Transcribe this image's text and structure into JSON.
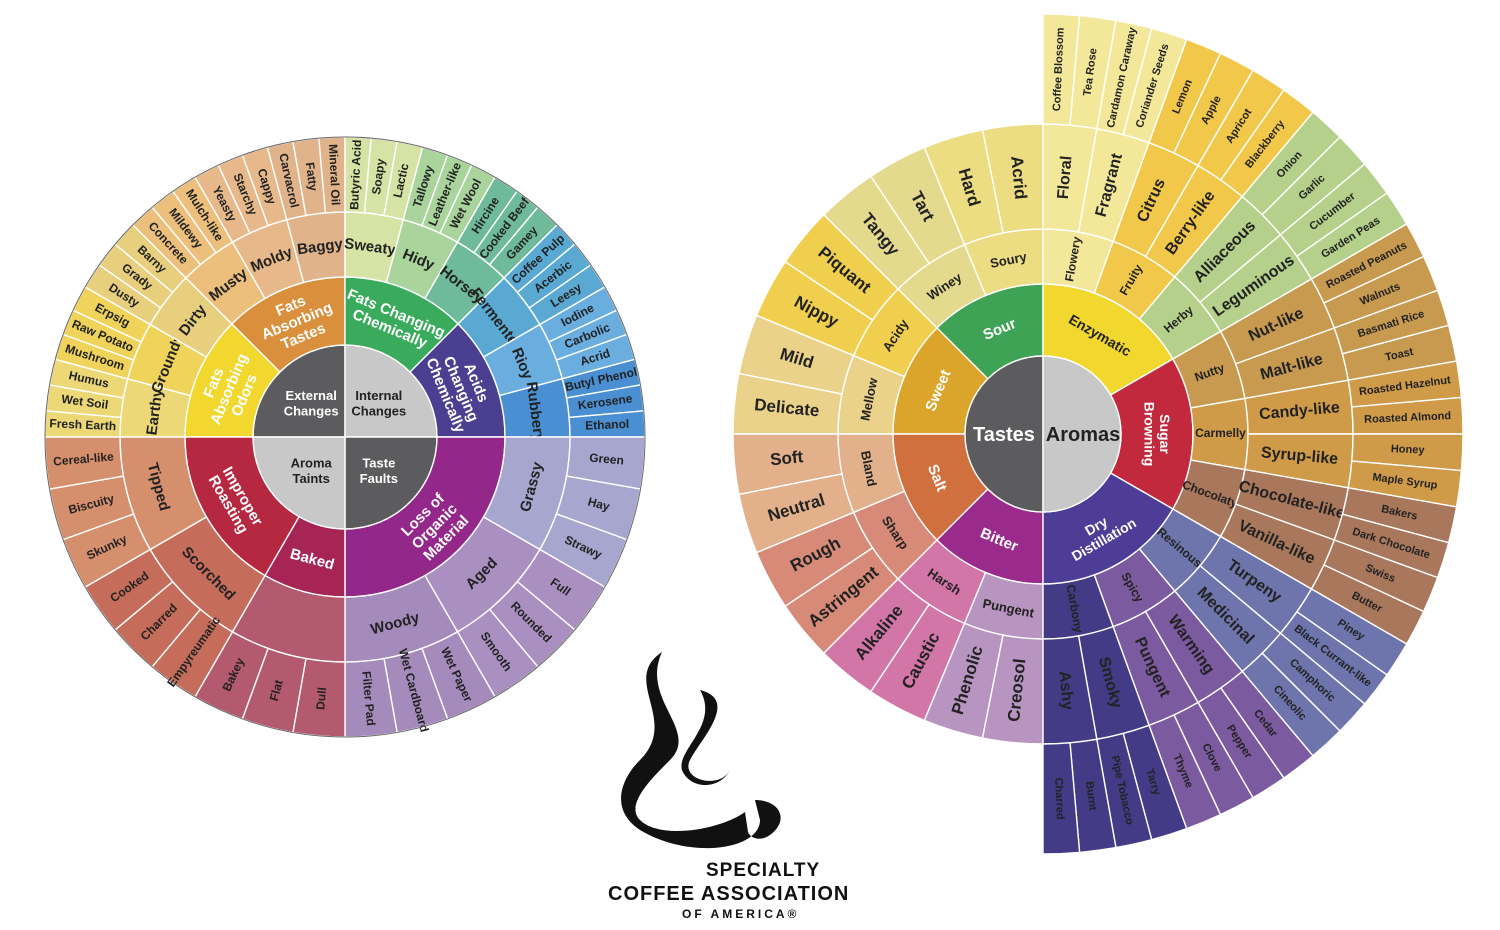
{
  "left_wheel": {
    "quadrants": [
      {
        "label": "External Changes",
        "color": "#5c5c5e",
        "text": "#ffffff",
        "groups": [
          {
            "label": "Fats Absorbing Odors",
            "color": "#f2d72e",
            "subs": [
              {
                "label": "Earthy",
                "color": "#ecd877",
                "items": [
                  "Fresh Earth",
                  "Wet Soil",
                  "Humus"
                ]
              },
              {
                "label": "Groundy",
                "color": "#efd35a",
                "items": [
                  "Mushroom",
                  "Raw Potato",
                  "Erpsig"
                ]
              },
              {
                "label": "Dirty",
                "color": "#e8cf7d",
                "items": [
                  "Dusty",
                  "Grady",
                  "Barny"
                ]
              }
            ]
          },
          {
            "label": "Fats Absorbing Tastes",
            "color": "#d98f3b",
            "subs": [
              {
                "label": "Musty",
                "color": "#ecc07c",
                "items": [
                  "Concrete",
                  "Mildewy",
                  "Mulch-like"
                ]
              },
              {
                "label": "Moldy",
                "color": "#e7b98a",
                "items": [
                  "Yeasty",
                  "Starchy",
                  "Cappy"
                ]
              },
              {
                "label": "Baggy",
                "color": "#e0b38a",
                "items": [
                  "Carvacrol",
                  "Fatty",
                  "Mineral Oil"
                ]
              }
            ]
          }
        ]
      },
      {
        "label": "Internal Changes",
        "color": "#c8c8c8",
        "text": "#222222",
        "groups": [
          {
            "label": "Fats Changing Chemically",
            "color": "#3aab5c",
            "subs": [
              {
                "label": "Sweaty",
                "color": "#d6e3a5",
                "items": [
                  "Butyric Acid",
                  "Soapy",
                  "Lactic"
                ]
              },
              {
                "label": "Hidy",
                "color": "#a9d49b",
                "items": [
                  "Tallowy",
                  "Leather-like",
                  "Wet Wool"
                ]
              },
              {
                "label": "Horsey",
                "color": "#6fba9a",
                "items": [
                  "Hircine",
                  "Cooked Beef",
                  "Gamey"
                ]
              }
            ]
          },
          {
            "label": "Acids Changing Chemically",
            "color": "#4b3f92",
            "subs": [
              {
                "label": "Fermented",
                "color": "#5aa9d3",
                "items": [
                  "Coffee Pulp",
                  "Acerbic",
                  "Leesy"
                ]
              },
              {
                "label": "Rioy",
                "color": "#6aaee0",
                "items": [
                  "Iodine",
                  "Carbolic",
                  "Acrid"
                ]
              },
              {
                "label": "Rubbery",
                "color": "#4a8fd2",
                "items": [
                  "Butyl Phenol",
                  "Kerosene",
                  "Ethanol"
                ]
              }
            ]
          }
        ]
      },
      {
        "label": "Taste Faults",
        "color": "#5c5c5e",
        "text": "#ffffff",
        "groups": [
          {
            "label": "Loss of Organic Material",
            "color": "#93288a",
            "subs": [
              {
                "label": "Grassy",
                "color": "#a7a6cf",
                "items": [
                  "Green",
                  "Hay",
                  "Strawy"
                ]
              },
              {
                "label": "Aged",
                "color": "#a990c0",
                "items": [
                  "Full",
                  "Rounded",
                  "Smooth"
                ]
              },
              {
                "label": "Woody",
                "color": "#a48bbb",
                "items": [
                  "Wet Paper",
                  "Wet Cardboard",
                  "Filter Pad"
                ]
              }
            ]
          }
        ]
      },
      {
        "label": "Aroma Taints",
        "color": "#c8c8c8",
        "text": "#222222",
        "groups": [
          {
            "label": "Baked",
            "color": "#a62555",
            "subs": [
              {
                "label": "",
                "color": "#b35a6e",
                "items": [
                  "Dull",
                  "Flat",
                  "Bakey"
                ]
              }
            ]
          },
          {
            "label": "Improper Roasting",
            "color": "#b5283f",
            "subs": [
              {
                "label": "Scorched",
                "color": "#c56d5a",
                "items": [
                  "Empyreumatic",
                  "Charred",
                  "Cooked"
                ]
              },
              {
                "label": "Tipped",
                "color": "#d68f6c",
                "items": [
                  "Skunky",
                  "Biscuity",
                  "Cereal-like"
                ]
              }
            ]
          }
        ]
      }
    ]
  },
  "right_wheel": {
    "tastes_label": "Tastes",
    "aromas_label": "Aromas",
    "tastes": [
      {
        "label": "Sour",
        "color": "#3ea354",
        "subs": [
          {
            "label": "Soury",
            "color": "#ecdc82",
            "items": [
              "Acrid",
              "Hard"
            ]
          },
          {
            "label": "Winey",
            "color": "#e3da8e",
            "items": [
              "Tart",
              "Tangy"
            ]
          }
        ]
      },
      {
        "label": "Sweet",
        "color": "#dba52b",
        "subs": [
          {
            "label": "Acidy",
            "color": "#f0cf4f",
            "items": [
              "Piquant",
              "Nippy"
            ]
          },
          {
            "label": "Mellow",
            "color": "#ead28a",
            "items": [
              "Mild",
              "Delicate"
            ]
          }
        ]
      },
      {
        "label": "Salt",
        "color": "#d0703f",
        "subs": [
          {
            "label": "Bland",
            "color": "#e2b08a",
            "items": [
              "Soft",
              "Neutral"
            ]
          },
          {
            "label": "Sharp",
            "color": "#d78a78",
            "items": [
              "Rough",
              "Astringent"
            ]
          }
        ]
      },
      {
        "label": "Bitter",
        "color": "#9a2a8b",
        "subs": [
          {
            "label": "Harsh",
            "color": "#d276a7",
            "items": [
              "Alkaline",
              "Caustic"
            ]
          },
          {
            "label": "Pungent",
            "color": "#b895c0",
            "items": [
              "Phenolic",
              "Creosol"
            ]
          }
        ]
      }
    ],
    "aromas": [
      {
        "label": "Enzymatic",
        "color": "#f2d72e",
        "subs": [
          {
            "label": "Flowery",
            "color": "#f3e89a",
            "items": [
              {
                "label": "Floral",
                "children": [
                  "Coffee Blossom",
                  "Tea Rose"
                ]
              },
              {
                "label": "Fragrant",
                "children": [
                  "Cardamon Caraway",
                  "Coriander Seeds"
                ]
              }
            ]
          },
          {
            "label": "Fruity",
            "color": "#f2c84a",
            "items": [
              {
                "label": "Citrus",
                "children": [
                  "Lemon",
                  "Apple"
                ]
              },
              {
                "label": "Berry-like",
                "children": [
                  "Apricot",
                  "Blackberry"
                ]
              }
            ]
          },
          {
            "label": "Herby",
            "color": "#b5d08a",
            "items": [
              {
                "label": "Alliaceous",
                "children": [
                  "Onion",
                  "Garlic"
                ]
              },
              {
                "label": "Leguminous",
                "children": [
                  "Cucumber",
                  "Garden Peas"
                ]
              }
            ]
          }
        ]
      },
      {
        "label": "Sugar Browning",
        "color": "#c2293d",
        "subs": [
          {
            "label": "Nutty",
            "color": "#c79a50",
            "items": [
              {
                "label": "Nut-like",
                "children": [
                  "Roasted Peanuts",
                  "Walnuts"
                ]
              },
              {
                "label": "Malt-like",
                "children": [
                  "Basmati Rice",
                  "Toast"
                ]
              }
            ]
          },
          {
            "label": "Carmelly",
            "color": "#d09b48",
            "items": [
              {
                "label": "Candy-like",
                "children": [
                  "Roasted Hazelnut",
                  "Roasted Almond"
                ]
              },
              {
                "label": "Syrup-like",
                "children": [
                  "Honey",
                  "Maple Syrup"
                ]
              }
            ]
          },
          {
            "label": "Chocolaty",
            "color": "#a9785c",
            "items": [
              {
                "label": "Chocolate-like",
                "children": [
                  "Bakers",
                  "Dark Chocolate"
                ]
              },
              {
                "label": "Vanilla-like",
                "children": [
                  "Swiss",
                  "Butter"
                ]
              }
            ]
          }
        ]
      },
      {
        "label": "Dry Distillation",
        "color": "#4e3d97",
        "subs": [
          {
            "label": "Resinous",
            "color": "#6d75ac",
            "items": [
              {
                "label": "Turpeny",
                "children": [
                  "Piney",
                  "Black Currant-like"
                ]
              },
              {
                "label": "Medicinal",
                "children": [
                  "Camphoric",
                  "Cineolic"
                ]
              }
            ]
          },
          {
            "label": "Spicy",
            "color": "#7b5aa0",
            "items": [
              {
                "label": "Warming",
                "children": [
                  "Cedar",
                  "Pepper"
                ]
              },
              {
                "label": "Pungent",
                "children": [
                  "Clove",
                  "Thyme"
                ]
              }
            ]
          },
          {
            "label": "Carbony",
            "color": "#433b85",
            "items": [
              {
                "label": "Smoky",
                "children": [
                  "Tarry",
                  "Pipe Tobacco"
                ]
              },
              {
                "label": "Ashy",
                "children": [
                  "Burnt",
                  "Charred"
                ]
              }
            ]
          }
        ]
      }
    ]
  },
  "logo": {
    "line1": "SPECIALTY",
    "line2": "COFFEE ASSOCIATION",
    "line3": "OF AMERICA®"
  }
}
